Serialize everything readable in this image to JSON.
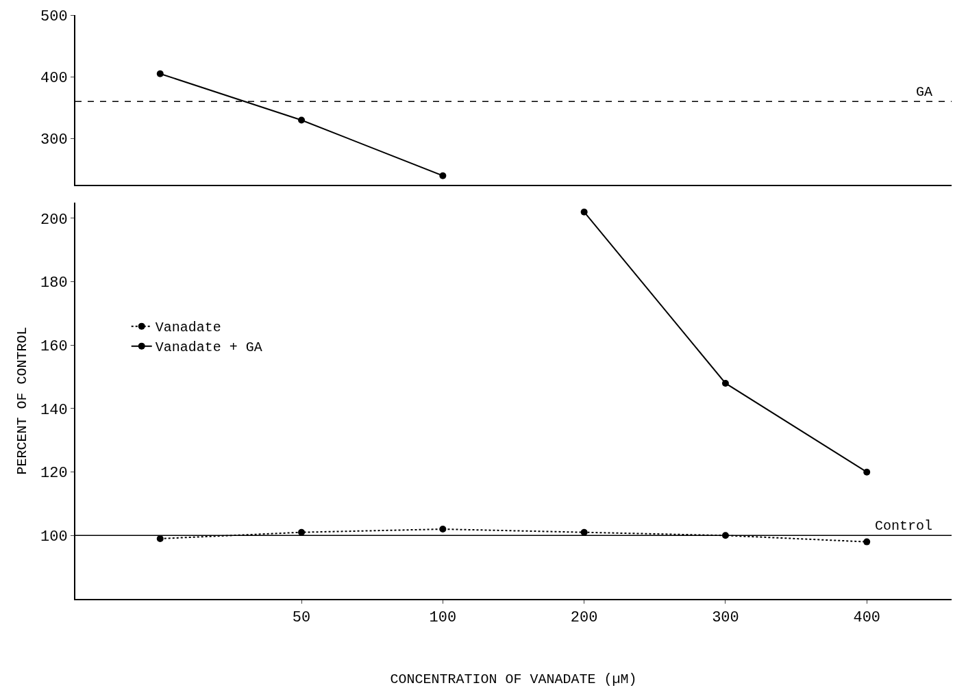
{
  "chart_data": [
    {
      "type": "line",
      "categories": [
        null,
        "50",
        "100",
        "200",
        "300",
        "400"
      ],
      "ylim": [
        225,
        500
      ],
      "yticks": [
        300,
        400,
        500
      ],
      "tick_labels": "y",
      "legend": false,
      "series": [
        {
          "color": "#000000",
          "values": [
            405,
            330,
            240,
            null,
            null,
            null
          ],
          "marker": "circle",
          "line_style": "solid"
        }
      ],
      "ref_lines": [
        {
          "axis": "y",
          "value": 360,
          "label": "GA",
          "line_style": "dashed",
          "color": "#000000"
        }
      ]
    },
    {
      "type": "line",
      "categories": [
        null,
        "50",
        "100",
        "200",
        "300",
        "400"
      ],
      "ylim": [
        80,
        205
      ],
      "yticks": [
        100,
        120,
        140,
        160,
        180,
        200
      ],
      "xlabel": "CONCENTRATION OF VANADATE (µM)",
      "ylabel": "PERCENT OF CONTROL",
      "legend": "center left",
      "series": [
        {
          "name": "Vanadate",
          "color": "#000000",
          "values": [
            99,
            101,
            102,
            101,
            100,
            98
          ],
          "marker": "circle",
          "line_style": "dotted"
        },
        {
          "name": "Vanadate + GA",
          "color": "#000000",
          "values": [
            null,
            null,
            null,
            202,
            148,
            120
          ],
          "marker": "circle",
          "line_style": "solid"
        }
      ],
      "ref_lines": [
        {
          "axis": "y",
          "value": 100,
          "label": "Control",
          "line_style": "solid",
          "color": "#000000"
        }
      ]
    }
  ]
}
